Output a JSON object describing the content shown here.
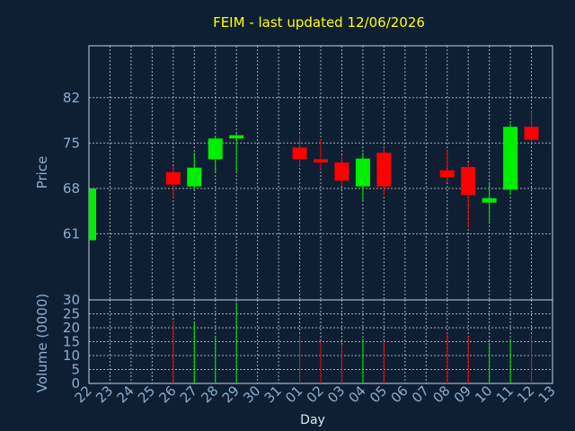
{
  "chart_data": {
    "type": "candlestick",
    "title": "FEIM - last updated 12/06/2026",
    "xlabel": "Day",
    "price_ylabel": "Price",
    "volume_ylabel": "Volume (0000)",
    "x_ticks": [
      "22",
      "23",
      "24",
      "25",
      "26",
      "27",
      "28",
      "29",
      "30",
      "31",
      "01",
      "02",
      "03",
      "04",
      "05",
      "06",
      "07",
      "08",
      "09",
      "10",
      "11",
      "12",
      "13"
    ],
    "price_ylim": [
      50.8,
      90
    ],
    "price_yticks": [
      61,
      68,
      75,
      82
    ],
    "volume_ylim": [
      0,
      30
    ],
    "volume_yticks": [
      0,
      5,
      10,
      15,
      20,
      25,
      30
    ],
    "grid": true,
    "colors": {
      "up": "#00ee00",
      "down": "#ff0000",
      "axis_text": "#8aaed0",
      "title": "#ffff00",
      "background": "#0f1f33",
      "grid": "#c8d2dc"
    },
    "candles": [
      {
        "day": "22",
        "open": 60.0,
        "high": 68.0,
        "low": 60.0,
        "close": 68.0,
        "volume": 0
      },
      {
        "day": "26",
        "open": 70.5,
        "high": 71.5,
        "low": 66.5,
        "close": 68.6,
        "volume": 22.5
      },
      {
        "day": "27",
        "open": 68.3,
        "high": 73.5,
        "low": 68.0,
        "close": 71.2,
        "volume": 22
      },
      {
        "day": "28",
        "open": 72.5,
        "high": 76.0,
        "low": 70.5,
        "close": 75.7,
        "volume": 17
      },
      {
        "day": "29",
        "open": 75.7,
        "high": 76.5,
        "low": 70.5,
        "close": 76.2,
        "volume": 29
      },
      {
        "day": "01",
        "open": 74.3,
        "high": 76.2,
        "low": 71.5,
        "close": 72.5,
        "volume": 17
      },
      {
        "day": "02",
        "open": 72.5,
        "high": 75.5,
        "low": 71.0,
        "close": 72.0,
        "volume": 15
      },
      {
        "day": "03",
        "open": 72.0,
        "high": 73.0,
        "low": 68.5,
        "close": 69.2,
        "volume": 14
      },
      {
        "day": "04",
        "open": 68.3,
        "high": 73.5,
        "low": 66.0,
        "close": 72.6,
        "volume": 16
      },
      {
        "day": "05",
        "open": 73.5,
        "high": 74.3,
        "low": 67.0,
        "close": 68.3,
        "volume": 15
      },
      {
        "day": "08",
        "open": 70.8,
        "high": 74.0,
        "low": 69.0,
        "close": 69.7,
        "volume": 18
      },
      {
        "day": "09",
        "open": 71.3,
        "high": 72.0,
        "low": 62.0,
        "close": 67.0,
        "volume": 17
      },
      {
        "day": "10",
        "open": 65.8,
        "high": 69.0,
        "low": 62.5,
        "close": 66.5,
        "volume": 14
      },
      {
        "day": "11",
        "open": 67.8,
        "high": 78.0,
        "low": 67.0,
        "close": 77.5,
        "volume": 16
      },
      {
        "day": "12",
        "open": 77.5,
        "high": 80.0,
        "low": 75.0,
        "close": 75.5,
        "volume": 17
      }
    ]
  }
}
